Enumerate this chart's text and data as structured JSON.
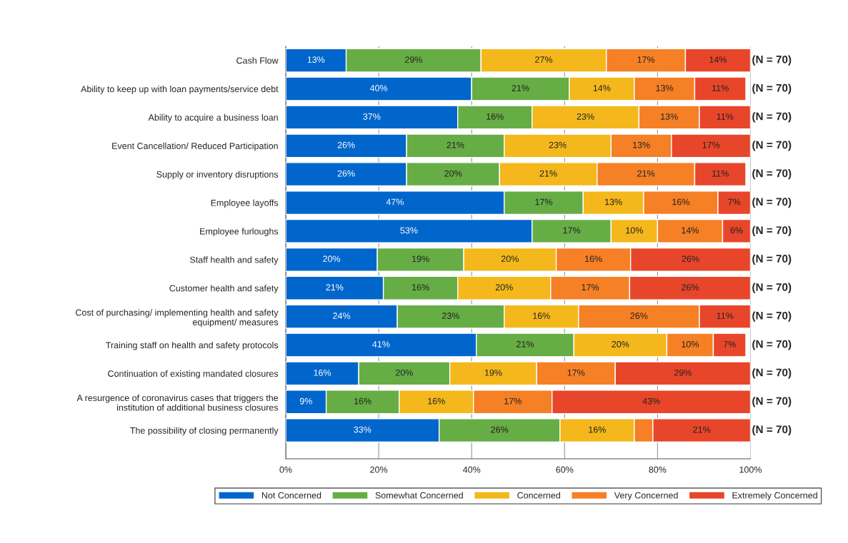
{
  "chart_data": {
    "type": "bar",
    "orientation": "horizontal",
    "stacked": true,
    "categories": [
      "Cash Flow",
      "Ability to keep up with loan payments/service debt",
      "Ability to acquire a business loan",
      "Event Cancellation/ Reduced Participation",
      "Supply or inventory disruptions",
      "Employee layoffs",
      "Employee furloughs",
      "Staff health and safety",
      "Customer health and safety",
      "Cost of purchasing/ implementing health and safety\nequipment/ measures",
      "Training staff on health and safety protocols",
      "Continuation of existing mandated closures",
      "A resurgence of coronavirus cases that triggers the\ninstitution of additional business closures",
      "The possibility of closing permanently"
    ],
    "series": [
      {
        "name": "Not Concerned",
        "color": "#0066cc",
        "values": [
          13,
          40,
          37,
          26,
          26,
          47,
          53,
          19.7,
          21,
          24,
          41,
          15.7,
          8.7,
          33
        ],
        "value_labels": [
          "13%",
          "40%",
          "37%",
          "26%",
          "26%",
          "47%",
          "53%",
          "20%",
          "21%",
          "24%",
          "41%",
          "16%",
          "9%",
          "33%"
        ]
      },
      {
        "name": "Somewhat Concerned",
        "color": "#66ad45",
        "values": [
          29,
          21,
          16,
          21,
          20,
          17,
          17,
          18.6,
          16,
          23,
          21,
          19.6,
          15.7,
          26
        ],
        "value_labels": [
          "29%",
          "21%",
          "16%",
          "21%",
          "20%",
          "17%",
          "17%",
          "19%",
          "16%",
          "23%",
          "21%",
          "20%",
          "16%",
          "26%"
        ]
      },
      {
        "name": "Concerned",
        "color": "#f4b81c",
        "values": [
          27,
          14,
          23,
          23,
          21,
          13,
          10,
          19.9,
          20,
          16,
          20,
          18.7,
          16.0,
          16
        ],
        "value_labels": [
          "27%",
          "14%",
          "23%",
          "23%",
          "21%",
          "13%",
          "10%",
          "20%",
          "20%",
          "16%",
          "20%",
          "19%",
          "16%",
          "16%"
        ]
      },
      {
        "name": "Very Concerned",
        "color": "#f58025",
        "values": [
          17,
          13,
          13,
          13,
          21,
          16,
          14,
          16.0,
          17,
          26,
          10,
          16.9,
          16.9,
          4
        ],
        "value_labels": [
          "17%",
          "13%",
          "13%",
          "13%",
          "21%",
          "16%",
          "14%",
          "16%",
          "17%",
          "26%",
          "10%",
          "17%",
          "17%",
          null
        ]
      },
      {
        "name": "Extremely Concerned",
        "color": "#e8462a",
        "values": [
          14,
          11,
          11,
          17,
          11,
          7,
          6,
          25.8,
          26,
          11,
          7,
          29.1,
          42.7,
          21
        ],
        "value_labels": [
          "14%",
          "11%",
          "11%",
          "17%",
          "11%",
          "7%",
          "6%",
          "26%",
          "26%",
          "11%",
          "7%",
          "29%",
          "43%",
          "21%"
        ]
      }
    ],
    "xlim": [
      0,
      100
    ],
    "xticks": [
      {
        "value": 0,
        "label": "0%"
      },
      {
        "value": 20,
        "label": "20%"
      },
      {
        "value": 40,
        "label": "40%"
      },
      {
        "value": 60,
        "label": "60%"
      },
      {
        "value": 80,
        "label": "80%"
      },
      {
        "value": 100,
        "label": "100%"
      }
    ],
    "grid": "x",
    "legend": "bottom",
    "annotations": [
      "(N = 70)",
      "(N = 70)",
      "(N = 70)",
      "(N = 70)",
      "(N = 70)",
      "(N = 70)",
      "(N = 70)",
      "(N = 70)",
      "(N = 70)",
      "(N = 70)",
      "(N = 70)",
      "(N = 70)",
      "(N = 70)",
      "(N = 70)"
    ]
  }
}
